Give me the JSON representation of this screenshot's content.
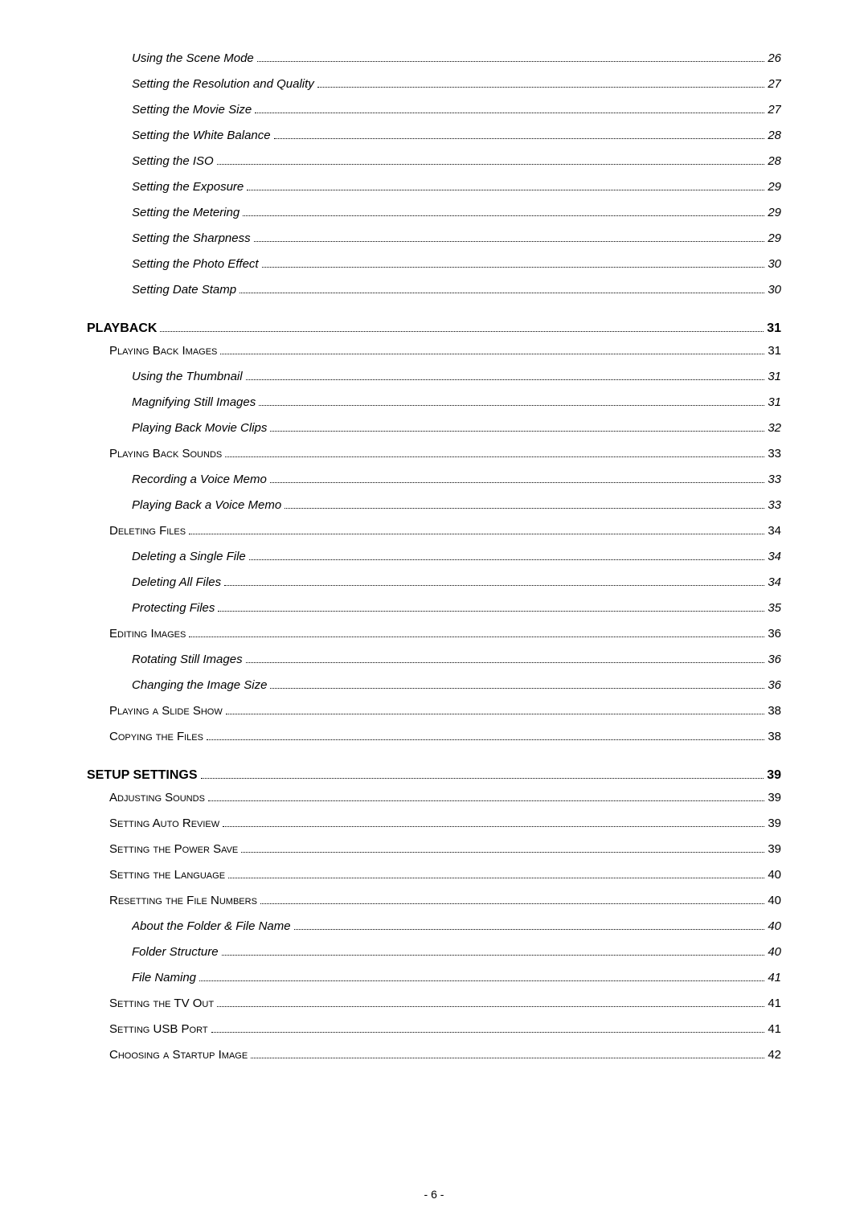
{
  "entries": [
    {
      "level": 2,
      "label": "Using the Scene Mode",
      "page": "26"
    },
    {
      "level": 2,
      "label": "Setting the Resolution and Quality",
      "page": "27"
    },
    {
      "level": 2,
      "label": "Setting the Movie Size",
      "page": "27"
    },
    {
      "level": 2,
      "label": "Setting the White Balance",
      "page": "28"
    },
    {
      "level": 2,
      "label": "Setting the ISO",
      "page": "28"
    },
    {
      "level": 2,
      "label": "Setting the Exposure",
      "page": "29"
    },
    {
      "level": 2,
      "label": "Setting the Metering",
      "page": "29"
    },
    {
      "level": 2,
      "label": "Setting the Sharpness",
      "page": "29"
    },
    {
      "level": 2,
      "label": "Setting the Photo Effect",
      "page": "30"
    },
    {
      "level": 2,
      "label": "Setting Date Stamp",
      "page": "30"
    },
    {
      "level": 0,
      "label": "PLAYBACK",
      "page": "31"
    },
    {
      "level": 1,
      "label": "Playing Back Images",
      "page": "31"
    },
    {
      "level": 2,
      "label": "Using the Thumbnail",
      "page": "31"
    },
    {
      "level": 2,
      "label": "Magnifying Still Images",
      "page": "31"
    },
    {
      "level": 2,
      "label": "Playing Back Movie Clips",
      "page": "32"
    },
    {
      "level": 1,
      "label": "Playing Back Sounds",
      "page": "33"
    },
    {
      "level": 2,
      "label": "Recording a Voice Memo",
      "page": "33"
    },
    {
      "level": 2,
      "label": "Playing Back a Voice Memo",
      "page": "33"
    },
    {
      "level": 1,
      "label": "Deleting Files",
      "page": "34"
    },
    {
      "level": 2,
      "label": "Deleting a Single File",
      "page": "34"
    },
    {
      "level": 2,
      "label": "Deleting All Files",
      "page": "34"
    },
    {
      "level": 2,
      "label": "Protecting Files",
      "page": "35"
    },
    {
      "level": 1,
      "label": "Editing Images",
      "page": "36"
    },
    {
      "level": 2,
      "label": "Rotating Still Images",
      "page": "36"
    },
    {
      "level": 2,
      "label": "Changing the Image Size",
      "page": "36"
    },
    {
      "level": 1,
      "label": "Playing a Slide Show",
      "page": "38"
    },
    {
      "level": 1,
      "label": "Copying the Files",
      "page": "38"
    },
    {
      "level": 0,
      "label": "SETUP SETTINGS",
      "page": "39"
    },
    {
      "level": 1,
      "label": "Adjusting Sounds",
      "page": "39"
    },
    {
      "level": 1,
      "label": "Setting Auto Review",
      "page": "39"
    },
    {
      "level": 1,
      "label": "Setting the Power Save",
      "page": "39"
    },
    {
      "level": 1,
      "label": "Setting the Language",
      "page": "40"
    },
    {
      "level": 1,
      "label": "Resetting the File Numbers",
      "page": "40"
    },
    {
      "level": 2,
      "label": "About the Folder & File Name",
      "page": "40"
    },
    {
      "level": 2,
      "label": "Folder Structure",
      "page": "40"
    },
    {
      "level": 2,
      "label": "File Naming",
      "page": "41"
    },
    {
      "level": 1,
      "label": "Setting the TV Out",
      "page": "41"
    },
    {
      "level": 1,
      "label": "Setting USB Port",
      "page": "41"
    },
    {
      "level": 1,
      "label": "Choosing a Startup Image",
      "page": "42"
    }
  ],
  "footer": "- 6 -",
  "colors": {
    "text": "#000000",
    "background": "#ffffff"
  }
}
